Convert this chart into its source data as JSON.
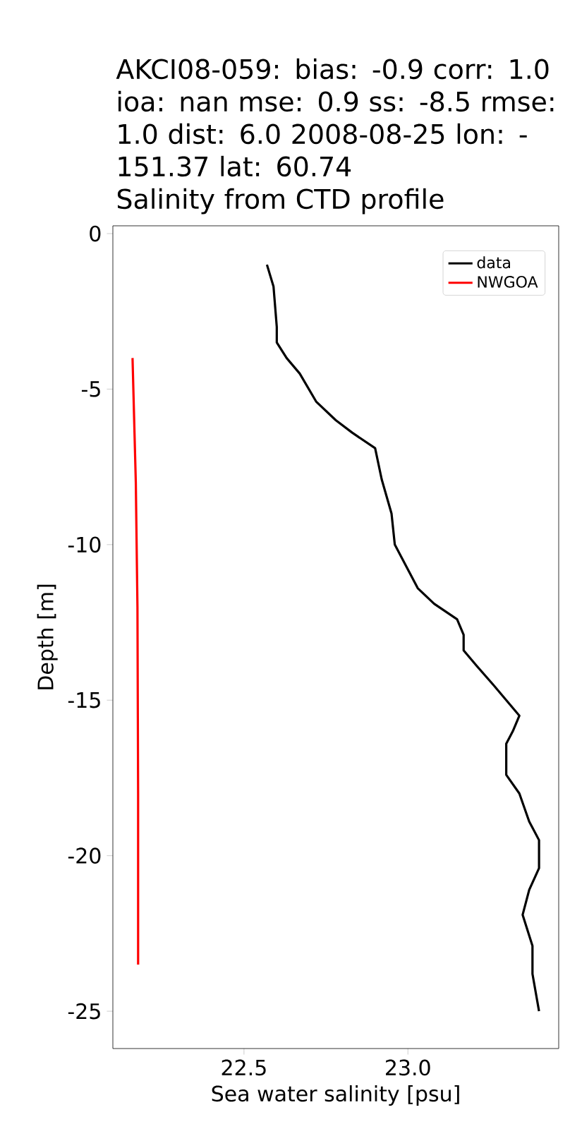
{
  "chart_data": {
    "type": "line",
    "title": "AKCI08-059: bias: -0.9  corr: 1.0  ioa: nan  mse: 0.9  ss: -8.5  rmse: 1.0  dist: 6.0 2008-08-25 lon: -151.37 lat: 60.74",
    "subtitle": "Salinity from CTD profile",
    "xlabel": "Sea water salinity [psu]",
    "ylabel": "Depth [m]",
    "xlim": [
      22.1,
      23.46
    ],
    "ylim": [
      -26.2,
      0.25
    ],
    "xticks": [
      22.5,
      {
        "value": 23.0,
        "label": "23.0"
      }
    ],
    "yticks": [
      0,
      -5,
      -10,
      -15,
      -20,
      -25
    ],
    "legend": "top right",
    "grid": false,
    "series": [
      {
        "name": "data",
        "color": "#000000",
        "x": [
          22.57,
          22.59,
          22.6,
          22.6,
          22.63,
          22.67,
          22.72,
          22.78,
          22.83,
          22.9,
          22.92,
          22.95,
          22.96,
          22.99,
          23.03,
          23.08,
          23.15,
          23.17,
          23.17,
          23.21,
          23.26,
          23.34,
          23.32,
          23.3,
          23.3,
          23.34,
          23.37,
          23.4,
          23.4,
          23.37,
          23.35,
          23.38,
          23.38,
          23.4
        ],
        "values": [
          -1.0,
          -1.7,
          -3.0,
          -3.5,
          -4.0,
          -4.5,
          -5.4,
          -6.0,
          -6.4,
          -6.9,
          -7.9,
          -9.0,
          -10.0,
          -10.6,
          -11.4,
          -11.9,
          -12.4,
          -12.9,
          -13.4,
          -13.9,
          -14.5,
          -15.5,
          -16.0,
          -16.4,
          -17.4,
          -18.0,
          -18.9,
          -19.5,
          -20.4,
          -21.1,
          -21.9,
          -22.9,
          -23.8,
          -25.0
        ]
      },
      {
        "name": "NWGOA",
        "color": "#ff0000",
        "x": [
          22.16,
          22.17,
          22.175,
          22.177,
          22.177
        ],
        "values": [
          -4.0,
          -8.0,
          -12.0,
          -18.0,
          -23.5
        ]
      }
    ]
  }
}
